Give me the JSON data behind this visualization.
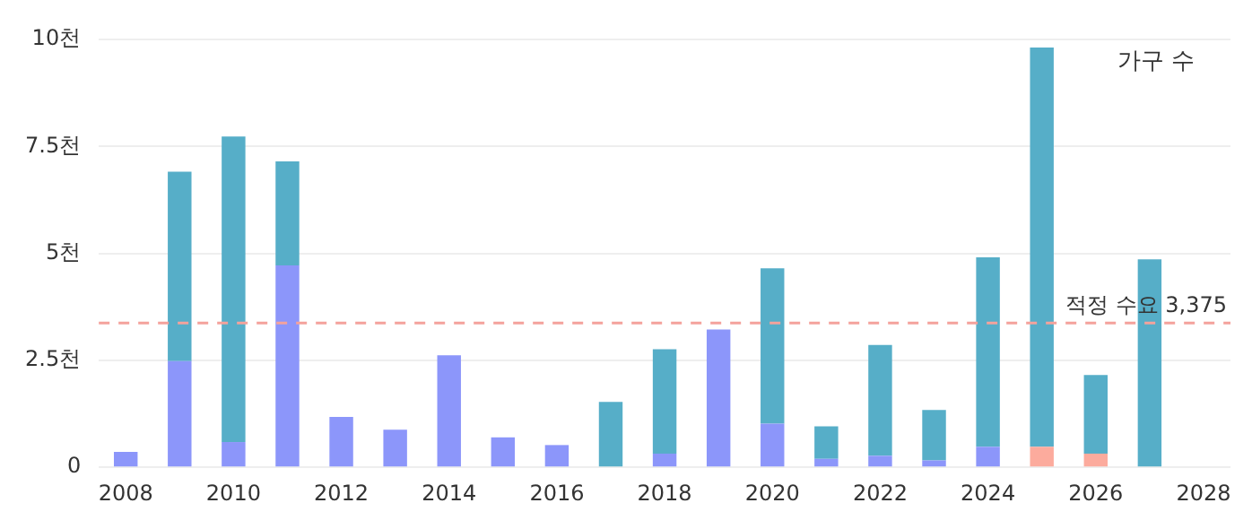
{
  "chart_data": {
    "type": "bar",
    "stacked": true,
    "categories": [
      "2008",
      null,
      "2010",
      null,
      "2012",
      null,
      "2014",
      null,
      "2016",
      null,
      "2018",
      null,
      "2020",
      null,
      "2022",
      null,
      "2024",
      null,
      "2026",
      null,
      "2028"
    ],
    "series": [
      {
        "colors": [
          "#8c96fa",
          "#8c96fa",
          "#8c96fa",
          "#8c96fa",
          "#8c96fa",
          "#8c96fa",
          "#8c96fa",
          "#8c96fa",
          "#8c96fa",
          "#8c96fa",
          "#8c96fa",
          "#8c96fa",
          "#8c96fa",
          "#8c96fa",
          "#8c96fa",
          "#8c96fa",
          "#8c96fa",
          "#fcab9d",
          "#fcab9d",
          "#8c96fa",
          "#8c96fa"
        ],
        "values": [
          0.36,
          2.48,
          0.59,
          4.72,
          1.18,
          0.88,
          2.62,
          0.7,
          0.52,
          null,
          0.32,
          3.22,
          1.02,
          0.2,
          0.27,
          0.16,
          0.48,
          0.48,
          0.32,
          null,
          null
        ]
      },
      {
        "color": "#56aec8",
        "values": [
          null,
          4.43,
          7.14,
          2.43,
          null,
          null,
          null,
          null,
          null,
          1.53,
          2.44,
          null,
          3.63,
          0.76,
          2.59,
          1.18,
          4.43,
          9.33,
          1.84,
          4.86,
          null
        ]
      }
    ],
    "ylim": [
      0,
      10
    ],
    "yticks": [
      0,
      {
        "value": 2.5,
        "label": "2.5천"
      },
      {
        "value": 5,
        "label": "5천"
      },
      {
        "value": 7.5,
        "label": "7.5천"
      },
      {
        "value": 10,
        "label": "10천"
      }
    ],
    "grid": "y",
    "ref_lines": [
      {
        "axis": "y",
        "value": 3.375,
        "label": "적정 수요 3,375",
        "color": "#f4a29c",
        "line_style": "dashed"
      }
    ],
    "annotations": [
      "가구 수"
    ]
  }
}
